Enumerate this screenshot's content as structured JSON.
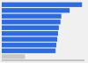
{
  "chart_data": {
    "type": "bar",
    "orientation": "horizontal",
    "values": [
      97,
      82,
      72,
      71,
      69,
      68,
      67,
      66,
      65,
      28
    ],
    "colors": [
      "#2d6be4",
      "#2d6be4",
      "#2d6be4",
      "#2d6be4",
      "#2d6be4",
      "#2d6be4",
      "#2d6be4",
      "#2d6be4",
      "#2d6be4",
      "#c8c8c8"
    ],
    "xlim": [
      0,
      100
    ],
    "tick_labels": false
  }
}
